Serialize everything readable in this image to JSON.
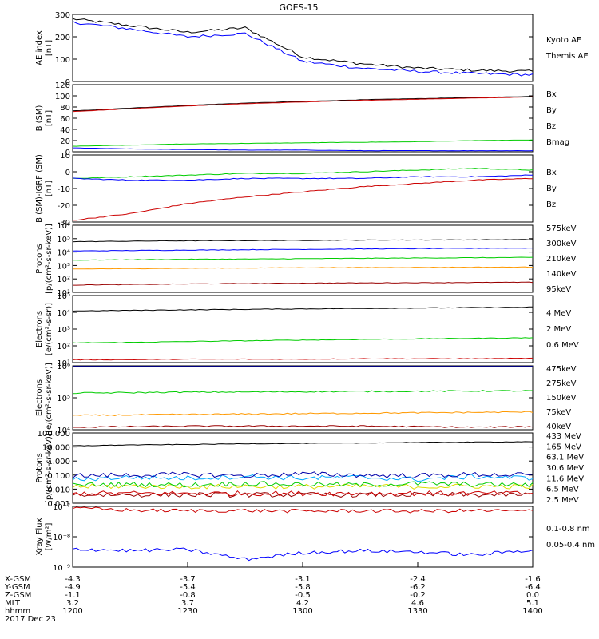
{
  "title": "GOES-15",
  "colors": {
    "black": "#000000",
    "blue": "#0000ff",
    "green": "#00cc00",
    "red": "#cc0000",
    "orange": "#ff9900",
    "yellow": "#dddd00",
    "cyan": "#00aaff",
    "darkred": "#990000",
    "navy": "#0000aa"
  },
  "panels": [
    {
      "id": "ae",
      "ylabel": [
        "AE index",
        "[nT]"
      ],
      "scale": "linear",
      "yticks": [
        "300",
        "200",
        "100",
        "0"
      ],
      "legend": [
        {
          "label": "Kyoto AE",
          "color": "#0000ff"
        },
        {
          "label": "Themis AE",
          "color": "#000000"
        }
      ]
    },
    {
      "id": "b_sm",
      "ylabel": [
        "B (SM)",
        "[nT]"
      ],
      "scale": "linear",
      "yticks": [
        "120",
        "100",
        "80",
        "60",
        "40",
        "20",
        "0"
      ],
      "legend": [
        {
          "label": "Bx",
          "color": "#0000ff"
        },
        {
          "label": "By",
          "color": "#00cc00"
        },
        {
          "label": "Bz",
          "color": "#cc0000"
        },
        {
          "label": "Bmag",
          "color": "#000000"
        }
      ]
    },
    {
      "id": "b_igrf",
      "ylabel": [
        "B (SM)-IGRF (SM)",
        "[nT]"
      ],
      "scale": "linear",
      "yticks": [
        "10",
        "0",
        "-10",
        "-20",
        "-30"
      ],
      "legend": [
        {
          "label": "Bx",
          "color": "#0000ff"
        },
        {
          "label": "By",
          "color": "#00cc00"
        },
        {
          "label": "Bz",
          "color": "#cc0000"
        }
      ]
    },
    {
      "id": "protons_low",
      "ylabel": [
        "Protons",
        "[p/(cm²-s-sr-keV)]"
      ],
      "scale": "log",
      "yticks": [
        "10⁶",
        "10⁵",
        "10⁴",
        "10³",
        "10²",
        "10¹"
      ],
      "legend": [
        {
          "label": "575keV",
          "color": "#990000"
        },
        {
          "label": "300keV",
          "color": "#ff9900"
        },
        {
          "label": "210keV",
          "color": "#00cc00"
        },
        {
          "label": "140keV",
          "color": "#0000ff"
        },
        {
          "label": "95keV",
          "color": "#000000"
        }
      ]
    },
    {
      "id": "electrons_mev",
      "ylabel": [
        "Electrons",
        "[e/(cm²-s-sr)]"
      ],
      "scale": "log",
      "yticks": [
        "10⁵",
        "10⁴",
        "10³",
        "10²",
        "10¹"
      ],
      "legend": [
        {
          "label": "4 MeV",
          "color": "#cc0000"
        },
        {
          "label": "2 MeV",
          "color": "#00cc00"
        },
        {
          "label": "0.6 MeV",
          "color": "#000000"
        }
      ]
    },
    {
      "id": "electrons_kev",
      "ylabel": [
        "Electrons",
        "[e/(cm²-s-sr-keV)]"
      ],
      "scale": "log",
      "yticks": [
        "10⁶",
        "10⁵",
        "10⁴"
      ],
      "legend": [
        {
          "label": "475keV",
          "color": "#990000"
        },
        {
          "label": "275keV",
          "color": "#ff9900"
        },
        {
          "label": "150keV",
          "color": "#00cc00"
        },
        {
          "label": "75keV",
          "color": "#0000ff"
        },
        {
          "label": "40keV",
          "color": "#000000"
        }
      ]
    },
    {
      "id": "protons_high",
      "ylabel": [
        "Protons",
        "[p/(cm²-s-sr-keV)]"
      ],
      "scale": "log",
      "yticks": [
        "100.000",
        "10.000",
        "1.000",
        "0.100",
        "0.010",
        "0.001"
      ],
      "legend": [
        {
          "label": "433 MeV",
          "color": "#990000"
        },
        {
          "label": "165 MeV",
          "color": "#cc0000"
        },
        {
          "label": "63.1 MeV",
          "color": "#dddd00"
        },
        {
          "label": "30.6 MeV",
          "color": "#00cc00"
        },
        {
          "label": "11.6 MeV",
          "color": "#00aaff"
        },
        {
          "label": "6.5 MeV",
          "color": "#0000aa"
        },
        {
          "label": "2.5 MeV",
          "color": "#000000"
        }
      ]
    },
    {
      "id": "xray",
      "ylabel": [
        "Xray Flux",
        "[W/m²]"
      ],
      "scale": "log",
      "yticks": [
        "10⁻⁷",
        "10⁻⁸",
        "10⁻⁹"
      ],
      "legend": [
        {
          "label": "0.1-0.8 nm",
          "color": "#cc0000"
        },
        {
          "label": "0.05-0.4 nm",
          "color": "#0000ff"
        }
      ]
    }
  ],
  "xaxis": {
    "row_labels": [
      "X-GSM",
      "Y-GSM",
      "Z-GSM",
      "MLT",
      "hhmm",
      "2017 Dec 23"
    ],
    "columns": [
      [
        "-4.3",
        "-4.9",
        "-1.1",
        "3.2",
        "1200"
      ],
      [
        "-3.7",
        "-5.4",
        "-0.8",
        "3.7",
        "1230"
      ],
      [
        "-3.1",
        "-5.8",
        "-0.5",
        "4.2",
        "1300"
      ],
      [
        "-2.4",
        "-6.2",
        "-0.2",
        "4.6",
        "1330"
      ],
      [
        "-1.6",
        "-6.4",
        "0.0",
        "5.1",
        "1400"
      ]
    ]
  },
  "chart_data": {
    "type": "line",
    "title": "GOES-15",
    "x": [
      1200,
      1215,
      1230,
      1245,
      1300,
      1315,
      1330,
      1345,
      1400
    ],
    "xlabel": "hhmm",
    "panels": [
      {
        "ylabel": "AE index [nT]",
        "ylim": [
          0,
          300
        ],
        "series": [
          {
            "name": "Themis AE",
            "values": [
              280,
              250,
              220,
              240,
              110,
              80,
              60,
              50,
              45
            ]
          },
          {
            "name": "Kyoto AE",
            "values": [
              265,
              235,
              200,
              215,
              90,
              60,
              45,
              35,
              30
            ]
          }
        ]
      },
      {
        "ylabel": "B (SM) [nT]",
        "ylim": [
          0,
          120
        ],
        "series": [
          {
            "name": "Bmag",
            "values": [
              73,
              78,
              83,
              87,
              90,
              93,
              95,
              97,
              99
            ]
          },
          {
            "name": "Bz",
            "values": [
              72,
              77,
              82,
              86,
              89,
              92,
              94,
              96,
              98
            ]
          },
          {
            "name": "By",
            "values": [
              10,
              12,
              14,
              15,
              16,
              17,
              18,
              20,
              21
            ]
          },
          {
            "name": "Bx",
            "values": [
              7,
              5,
              4,
              3,
              3,
              2,
              2,
              2,
              2
            ]
          }
        ]
      },
      {
        "ylabel": "B (SM)-IGRF (SM) [nT]",
        "ylim": [
          -30,
          10
        ],
        "series": [
          {
            "name": "By",
            "values": [
              -4,
              -3,
              -2,
              -1,
              -1,
              0,
              1,
              2,
              1
            ]
          },
          {
            "name": "Bx",
            "values": [
              -4,
              -5,
              -5,
              -4,
              -4,
              -4,
              -3,
              -3,
              -2
            ]
          },
          {
            "name": "Bz",
            "values": [
              -29,
              -25,
              -19,
              -15,
              -12,
              -9,
              -7,
              -5,
              -4
            ]
          }
        ]
      },
      {
        "ylabel": "Protons [p/(cm²-s-sr-keV)]",
        "log_ylim": [
          10,
          1000000
        ],
        "series": [
          {
            "name": "95keV",
            "values": [
              60000,
              65000,
              70000,
              72000,
              75000,
              78000,
              80000,
              82000,
              85000
            ]
          },
          {
            "name": "140keV",
            "values": [
              12000,
              13000,
              14000,
              15000,
              16000,
              17000,
              18000,
              19000,
              20000
            ]
          },
          {
            "name": "210keV",
            "values": [
              2500,
              2700,
              2900,
              3000,
              3200,
              3400,
              3600,
              3800,
              4000
            ]
          },
          {
            "name": "300keV",
            "values": [
              550,
              580,
              620,
              650,
              680,
              700,
              720,
              740,
              760
            ]
          },
          {
            "name": "575keV",
            "values": [
              35,
              38,
              42,
              45,
              48,
              50,
              52,
              54,
              56
            ]
          }
        ]
      },
      {
        "ylabel": "Electrons [e/(cm²-s-sr)]",
        "log_ylim": [
          10,
          100000
        ],
        "series": [
          {
            "name": "0.6 MeV",
            "values": [
              12000,
              13000,
              14000,
              15000,
              16000,
              17000,
              18000,
              19000,
              20000
            ]
          },
          {
            "name": "2 MeV",
            "values": [
              150,
              160,
              180,
              200,
              220,
              240,
              260,
              280,
              300
            ]
          },
          {
            "name": "4 MeV",
            "values": [
              15,
              15,
              16,
              16,
              16,
              17,
              17,
              17,
              18
            ]
          }
        ]
      },
      {
        "ylabel": "Electrons [e/(cm²-s-sr-keV)]",
        "log_ylim": [
          10000,
          1000000
        ],
        "series": [
          {
            "name": "40keV",
            "values": [
              1000000,
              1000000,
              1000000,
              1000000,
              1000000,
              1000000,
              1000000,
              1000000,
              1000000
            ]
          },
          {
            "name": "150keV",
            "values": [
              140000,
              145000,
              150000,
              152000,
              155000,
              158000,
              160000,
              163000,
              165000
            ]
          },
          {
            "name": "75keV",
            "values": [
              1000000,
              1000000,
              1000000,
              1000000,
              1000000,
              1000000,
              1000000,
              1000000,
              1000000
            ]
          },
          {
            "name": "275keV",
            "values": [
              28000,
              29000,
              30000,
              31000,
              32000,
              33000,
              34000,
              35000,
              36000
            ]
          },
          {
            "name": "475keV",
            "values": [
              12000,
              12500,
              13000,
              13000,
              13000,
              13000,
              12500,
              12000,
              12500
            ]
          }
        ]
      },
      {
        "ylabel": "Protons [p/(cm²-s-sr-keV)]",
        "log_ylim": [
          0.001,
          100
        ],
        "series": [
          {
            "name": "433 MeV",
            "values": [
              0.004,
              0.004,
              0.004,
              0.004,
              0.004,
              0.004,
              0.004,
              0.004,
              0.004
            ]
          },
          {
            "name": "165 MeV",
            "values": [
              0.005,
              0.005,
              0.005,
              0.005,
              0.005,
              0.005,
              0.005,
              0.005,
              0.005
            ]
          },
          {
            "name": "63.1 MeV",
            "values": [
              0.015,
              0.016,
              0.015,
              0.016,
              0.015,
              0.016,
              0.015,
              0.016,
              0.015
            ]
          },
          {
            "name": "30.6 MeV",
            "values": [
              0.02,
              0.022,
              0.02,
              0.025,
              0.022,
              0.02,
              0.025,
              0.022,
              0.02
            ]
          },
          {
            "name": "11.6 MeV",
            "values": [
              0.05,
              0.07,
              0.06,
              0.08,
              0.06,
              0.07,
              0.05,
              0.08,
              0.06
            ]
          },
          {
            "name": "6.5 MeV",
            "values": [
              0.09,
              0.1,
              0.11,
              0.09,
              0.12,
              0.1,
              0.09,
              0.11,
              0.1
            ]
          },
          {
            "name": "2.5 MeV",
            "values": [
              12,
              14,
              15,
              17,
              18,
              19,
              21,
              22,
              24
            ]
          }
        ]
      },
      {
        "ylabel": "Xray Flux [W/m²]",
        "log_ylim": [
          1e-09,
          1e-07
        ],
        "series": [
          {
            "name": "0.1-0.8 nm",
            "values": [
              9e-08,
              7.5e-08,
              7.2e-08,
              7.3e-08,
              7e-08,
              7.2e-08,
              7e-08,
              7.3e-08,
              7e-08
            ]
          },
          {
            "name": "0.05-0.4 nm",
            "values": [
              4e-09,
              3.5e-09,
              3.8e-09,
              1.8e-09,
              3e-09,
              3.5e-09,
              3.2e-09,
              2.5e-09,
              3.8e-09
            ]
          }
        ]
      }
    ]
  }
}
